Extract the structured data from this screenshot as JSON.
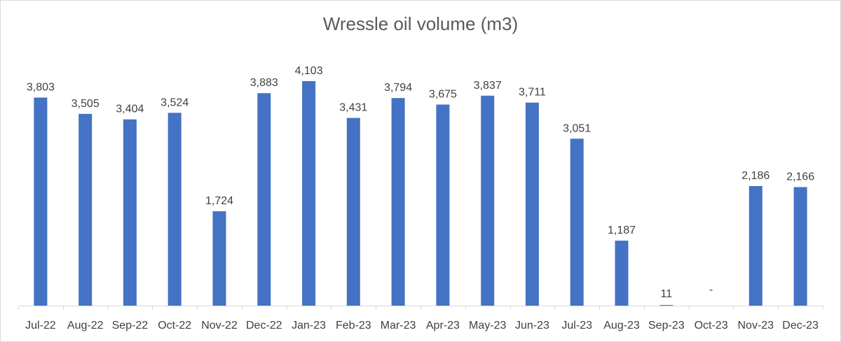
{
  "chart_data": {
    "type": "bar",
    "title": "Wressle oil volume (m3)",
    "xlabel": "",
    "ylabel": "",
    "categories": [
      "Jul-22",
      "Aug-22",
      "Sep-22",
      "Oct-22",
      "Nov-22",
      "Dec-22",
      "Jan-23",
      "Feb-23",
      "Mar-23",
      "Apr-23",
      "May-23",
      "Jun-23",
      "Jul-23",
      "Aug-23",
      "Sep-23",
      "Oct-23",
      "Nov-23",
      "Dec-23"
    ],
    "values": [
      3803,
      3505,
      3404,
      3524,
      1724,
      3883,
      4103,
      3431,
      3794,
      3675,
      3837,
      3711,
      3051,
      1187,
      11,
      0,
      2186,
      2166
    ],
    "data_labels": [
      "3,803",
      "3,505",
      "3,404",
      "3,524",
      "1,724",
      "3,883",
      "4,103",
      "3,431",
      "3,794",
      "3,675",
      "3,837",
      "3,711",
      "3,051",
      "1,187",
      "11",
      "-",
      "2,186",
      "2,166"
    ],
    "ylim": [
      0,
      4103
    ],
    "grid": false,
    "legend": "none",
    "bar_color": "#4472c4",
    "axis_color": "#d9d9d9",
    "text_color": "#404040"
  }
}
